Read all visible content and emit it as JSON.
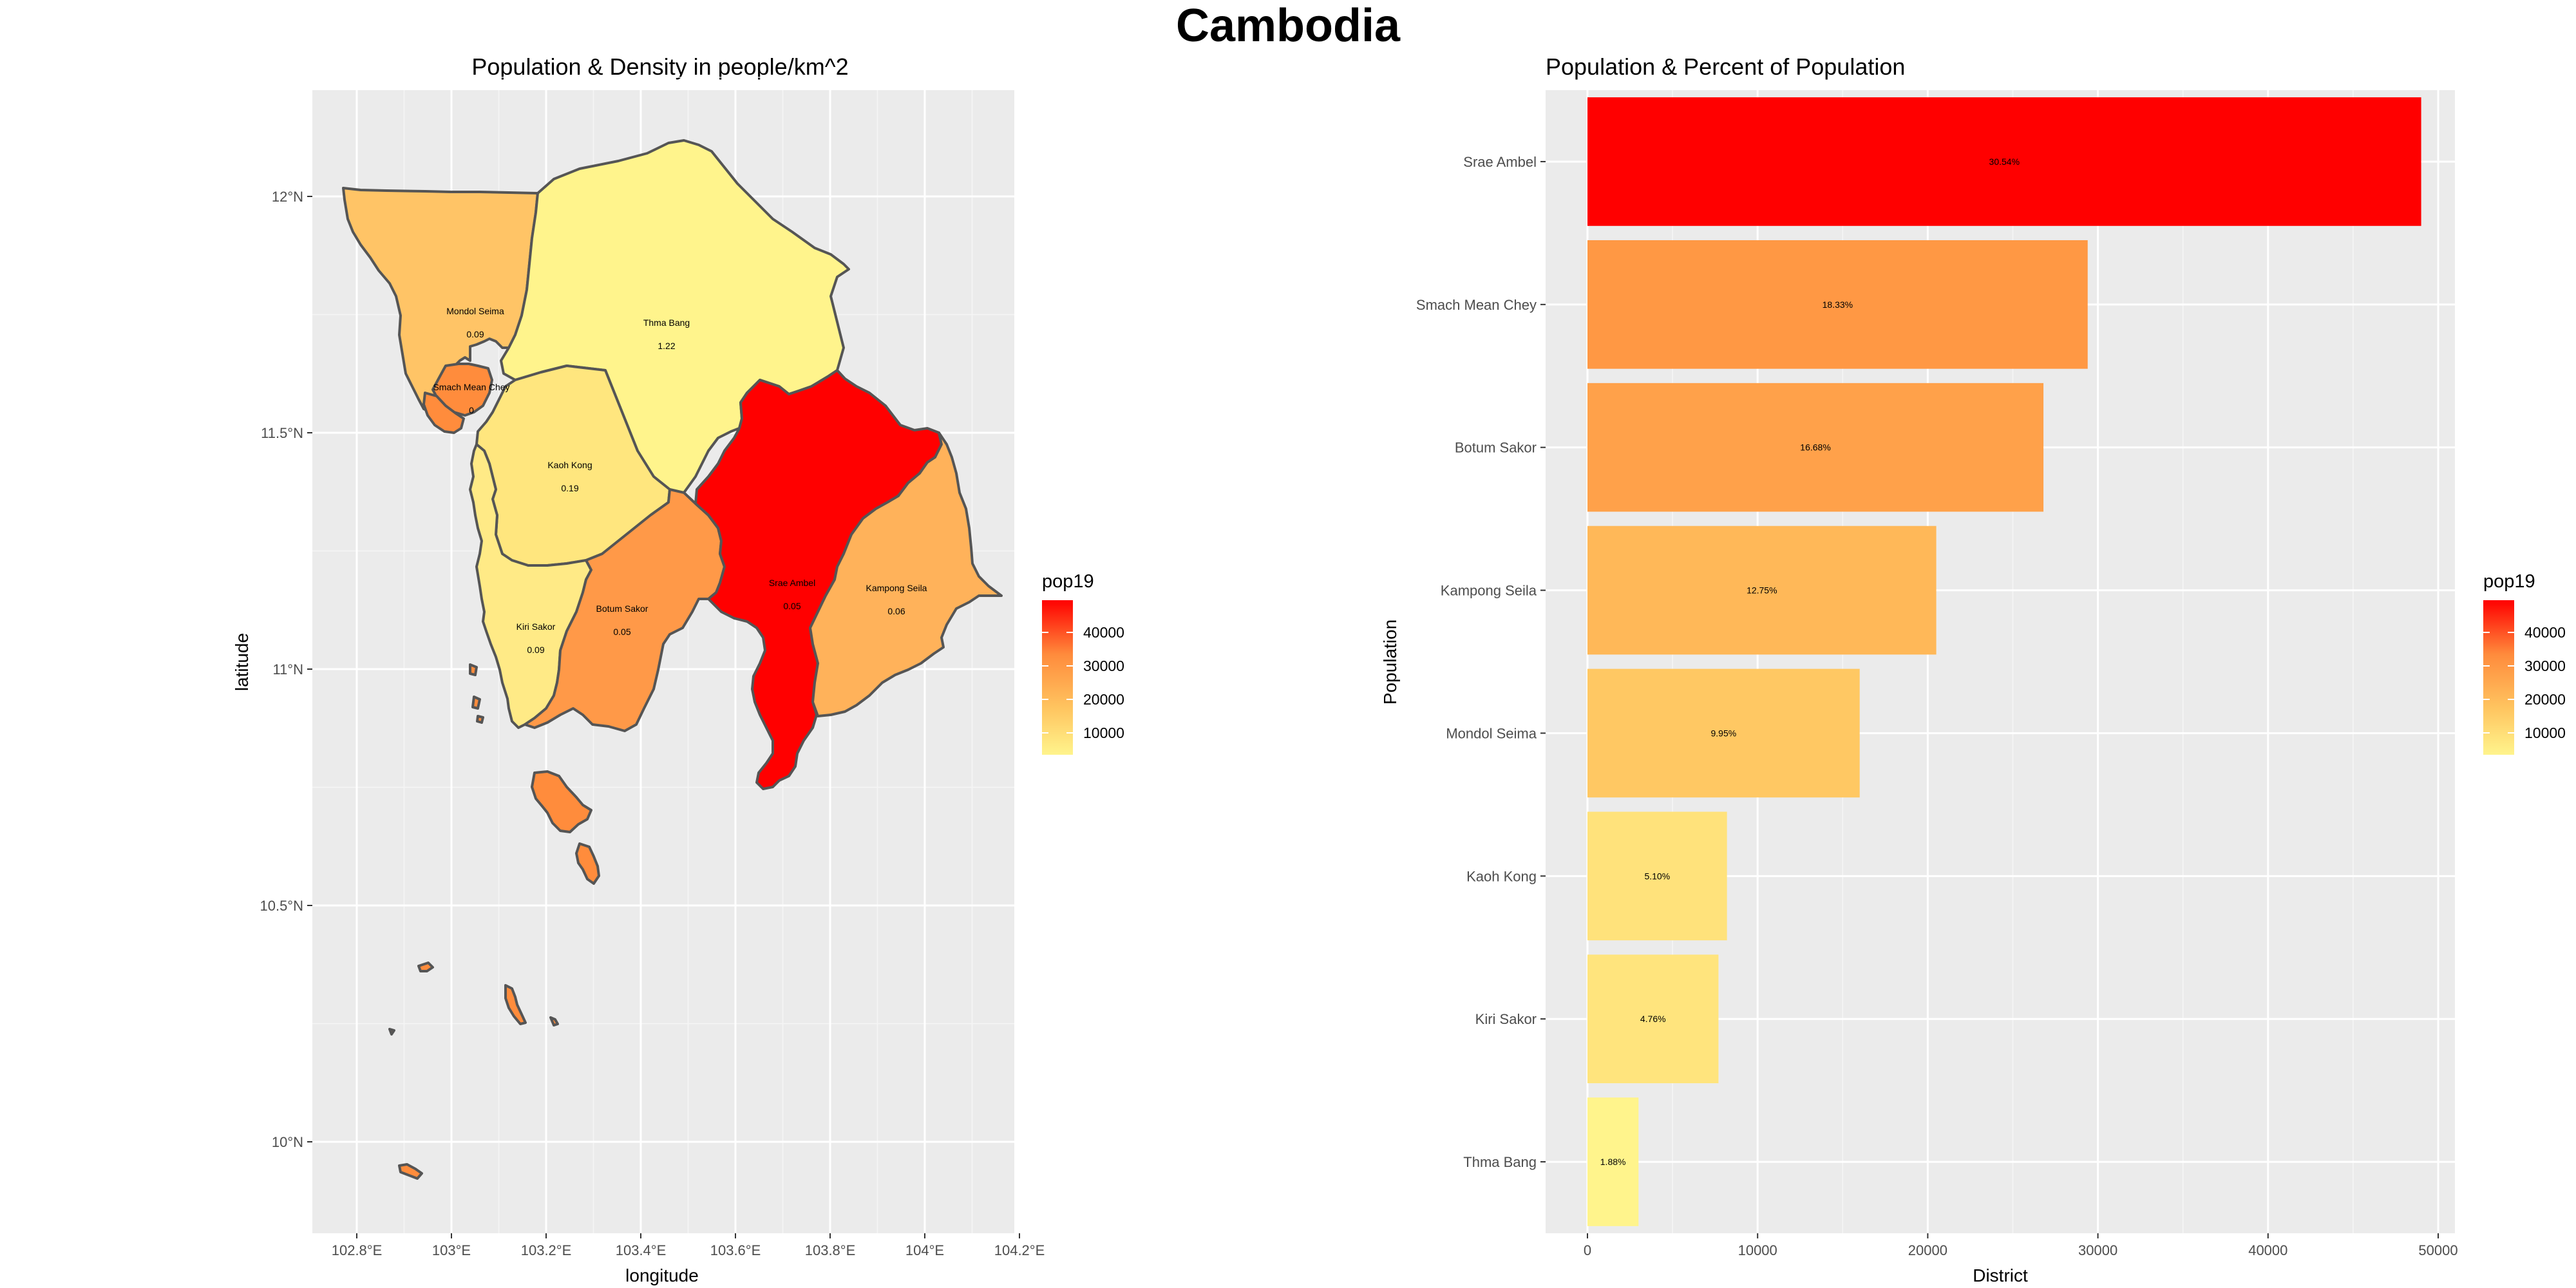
{
  "title": "Cambodia",
  "map_panel": {
    "title": "Population & Density in people/km^2",
    "xlabel": "longitude",
    "ylabel": "latitude",
    "x_ticks": [
      "102.8°E",
      "103°E",
      "103.2°E",
      "103.4°E",
      "103.6°E",
      "103.8°E",
      "104°E",
      "104.2°E"
    ],
    "y_ticks": [
      "12°N",
      "11.5°N",
      "11°N",
      "10.5°N",
      "10°N"
    ],
    "legend": {
      "title": "pop19",
      "labels": [
        "40000",
        "30000",
        "20000",
        "10000"
      ]
    },
    "district_labels": [
      {
        "name": "Mondol Seima",
        "value": "0.09"
      },
      {
        "name": "Thma Bang",
        "value": "1.22"
      },
      {
        "name": "Smach Mean Chey",
        "value": "0"
      },
      {
        "name": "Kaoh Kong",
        "value": "0.19"
      },
      {
        "name": "Srae Ambel",
        "value": "0.05"
      },
      {
        "name": "Kampong Seila",
        "value": "0.06"
      },
      {
        "name": "Botum Sakor",
        "value": "0.05"
      },
      {
        "name": "Kiri Sakor",
        "value": "0.09"
      }
    ]
  },
  "chart_data": {
    "type": "bar",
    "orientation": "horizontal",
    "title": "Population & Percent of Population",
    "xlabel": "District",
    "ylabel": "Population",
    "categories": [
      "Srae Ambel",
      "Smach Mean Chey",
      "Botum Sakor",
      "Kampong Seila",
      "Mondol Seima",
      "Kaoh Kong",
      "Kiri Sakor",
      "Thma Bang"
    ],
    "values": [
      49000,
      29400,
      26800,
      20500,
      16000,
      8200,
      7700,
      3000
    ],
    "percent_labels": [
      "30.54%",
      "18.33%",
      "16.68%",
      "12.75%",
      "9.95%",
      "5.10%",
      "4.76%",
      "1.88%"
    ],
    "x_ticks": [
      "0",
      "10000",
      "20000",
      "30000",
      "40000",
      "50000"
    ],
    "xlim": [
      0,
      51500
    ],
    "fill_scale": {
      "low": "#FFF48C",
      "high": "#FF0000",
      "min": 3000,
      "max": 49000
    },
    "legend": {
      "title": "pop19",
      "labels": [
        "40000",
        "30000",
        "20000",
        "10000"
      ]
    },
    "grid": true
  }
}
